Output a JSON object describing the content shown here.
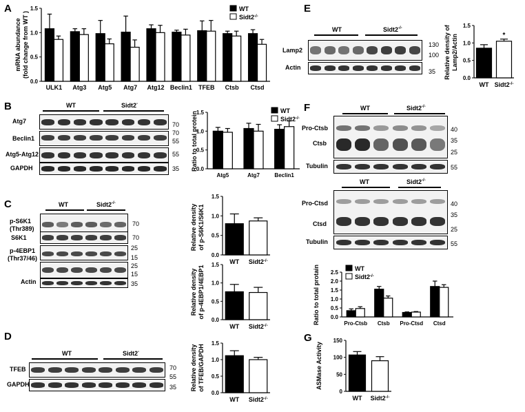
{
  "panels": {
    "A": "A",
    "B": "B",
    "C": "C",
    "D": "D",
    "E": "E",
    "F": "F",
    "G": "G"
  },
  "colors": {
    "wt": "#000000",
    "ko": "#ffffff",
    "blot_bg": "#f2f2f2",
    "band": "#1e1e1e"
  },
  "legend": {
    "wt": "WT",
    "ko": "Sidt2",
    "ko_sup": "-/-"
  },
  "panelA": {
    "chart_data": {
      "type": "bar",
      "ylabel": "mRNA abundance",
      "ylabel2": "(fold change from WT )",
      "categories": [
        "ULK1",
        "Atg3",
        "Atg5",
        "Atg7",
        "Atg12",
        "Beclin1",
        "TFEB",
        "Ctsb",
        "Ctsd"
      ],
      "ylim": [
        0,
        1.5
      ],
      "yticks": [
        "0.0",
        "0.5",
        "1.0",
        "1.5"
      ],
      "series": [
        {
          "name": "WT",
          "values": [
            1.08,
            1.02,
            0.98,
            1.01,
            1.08,
            1.01,
            1.04,
            0.98,
            0.98
          ],
          "err": [
            0.3,
            0.06,
            0.27,
            0.33,
            0.08,
            0.04,
            0.2,
            0.05,
            0.08
          ]
        },
        {
          "name": "Sidt2-/-",
          "values": [
            0.86,
            0.96,
            0.77,
            0.7,
            1.0,
            0.95,
            1.03,
            0.93,
            0.76
          ],
          "err": [
            0.07,
            0.12,
            0.1,
            0.15,
            0.15,
            0.12,
            0.22,
            0.1,
            0.1
          ]
        }
      ]
    }
  },
  "panelB": {
    "wt_label": "WT",
    "ko_label": "Sidt2",
    "ko_sup": "-",
    "rows": [
      "Atg7",
      "Beclin1",
      "Atg5-Atg12",
      "GAPDH"
    ],
    "markers": [
      "70",
      "70",
      "55",
      "55",
      "35"
    ],
    "chart_data": {
      "type": "bar",
      "ylabel": "Ratio to total protein",
      "categories": [
        "Atg5",
        "Atg7",
        "Beclin1"
      ],
      "ylim": [
        0,
        1.5
      ],
      "yticks": [
        "0.0",
        "0.5",
        "1.0",
        "1.5"
      ],
      "series": [
        {
          "name": "WT",
          "values": [
            1.0,
            1.07,
            1.05
          ],
          "err": [
            0.1,
            0.14,
            0.12
          ]
        },
        {
          "name": "Sidt2-/-",
          "values": [
            0.97,
            1.0,
            1.12
          ],
          "err": [
            0.1,
            0.18,
            0.15
          ]
        }
      ]
    }
  },
  "panelC": {
    "wt_label": "WT",
    "ko_label": "Sidt2",
    "ko_sup": "-/-",
    "rows": [
      "p-S6K1",
      "(Thr389)",
      "S6K1",
      "p-4EBP1",
      "(Thr37/46)",
      "Actin"
    ],
    "markers": [
      "70",
      "70",
      "25",
      "15",
      "25",
      "15",
      "35"
    ],
    "chart1": {
      "type": "bar",
      "ylabel": "Relative density",
      "ylabel2": "of p-S6K1/S6K1",
      "categories": [
        "WT",
        "Sidt2"
      ],
      "ylim": [
        0,
        1.5
      ],
      "yticks": [
        "0.0",
        "0.5",
        "1.0",
        "1.5"
      ],
      "values": [
        0.8,
        0.87
      ],
      "err": [
        0.25,
        0.08
      ]
    },
    "chart2": {
      "type": "bar",
      "ylabel": "Relative density",
      "ylabel2": "of p-4EBP1/4EBP1",
      "categories": [
        "WT",
        "Sidt2"
      ],
      "ylim": [
        0,
        1.5
      ],
      "yticks": [
        "0.0",
        "0.5",
        "1.0",
        "1.5"
      ],
      "values": [
        0.76,
        0.74
      ],
      "err": [
        0.2,
        0.14
      ]
    }
  },
  "panelD": {
    "wt_label": "WT",
    "ko_label": "Sidt2",
    "ko_sup": "-",
    "rows": [
      "TFEB",
      "GAPDH"
    ],
    "markers": [
      "70",
      "55",
      "35"
    ],
    "chart_data": {
      "type": "bar",
      "ylabel": "Relative density",
      "ylabel2": "of TFEB/GAPDH",
      "categories": [
        "WT",
        "Sidt2"
      ],
      "ylim": [
        0,
        1.5
      ],
      "yticks": [
        "0.0",
        "0.5",
        "1.0",
        "1.5"
      ],
      "values": [
        1.12,
        1.0
      ],
      "err": [
        0.15,
        0.07
      ]
    }
  },
  "panelE": {
    "wt_label": "WT",
    "ko_label": "Sidt2",
    "ko_sup": "-/-",
    "rows": [
      "Lamp2",
      "Actin"
    ],
    "markers": [
      "130",
      "100",
      "35"
    ],
    "chart_data": {
      "type": "bar",
      "ylabel": "Relative density of",
      "ylabel2": "Lamp2/Actin",
      "categories": [
        "WT",
        "Sidt2"
      ],
      "ylim": [
        0,
        1.5
      ],
      "yticks": [
        "0.0",
        "0.5",
        "1.0",
        "1.5"
      ],
      "values": [
        0.85,
        1.05
      ],
      "err": [
        0.1,
        0.06
      ],
      "sig": "*"
    }
  },
  "panelF": {
    "wt_label": "WT",
    "ko_label": "Sidt2",
    "ko_sup": "-/-",
    "rows1": [
      "Pro-Ctsb",
      "Ctsb",
      "Tubulin"
    ],
    "markers1": [
      "40",
      "35",
      "25",
      "55"
    ],
    "rows2": [
      "Pro-Ctsd",
      "Ctsd",
      "Tubulin"
    ],
    "markers2": [
      "40",
      "35",
      "25",
      "55"
    ],
    "chart_data": {
      "type": "bar",
      "ylabel": "Ratio to total protain",
      "categories": [
        "Pro-Ctsb",
        "Ctsb",
        "Pro-Ctsd",
        "Ctsd"
      ],
      "ylim": [
        0,
        2.5
      ],
      "yticks": [
        "0.0",
        "0.5",
        "1.0",
        "1.5",
        "2.0",
        "2.5"
      ],
      "series": [
        {
          "name": "WT",
          "values": [
            0.35,
            1.55,
            0.25,
            1.7
          ],
          "err": [
            0.1,
            0.15,
            0.03,
            0.3
          ]
        },
        {
          "name": "Sidt2-/-",
          "values": [
            0.47,
            1.05,
            0.27,
            1.65
          ],
          "err": [
            0.1,
            0.12,
            0.03,
            0.15
          ]
        }
      ]
    }
  },
  "panelG": {
    "chart_data": {
      "type": "bar",
      "ylabel": "ASMase Activity",
      "categories": [
        "WT",
        "Sidt2"
      ],
      "ylim": [
        0,
        150
      ],
      "yticks": [
        "0",
        "50",
        "100",
        "150"
      ],
      "values": [
        107,
        90
      ],
      "err": [
        10,
        12
      ]
    }
  }
}
